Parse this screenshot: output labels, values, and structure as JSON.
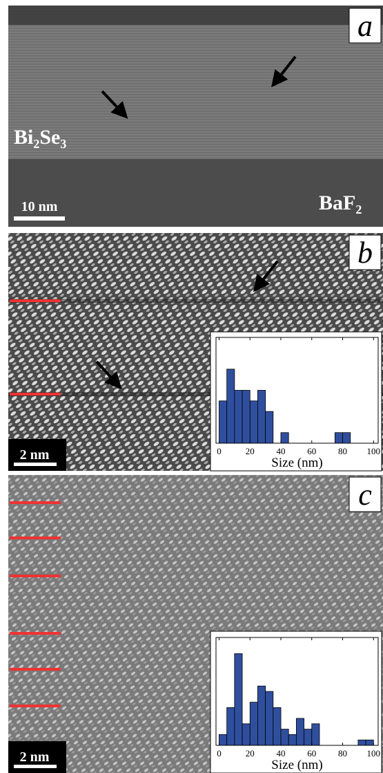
{
  "panels": [
    {
      "label": "a",
      "material_top": "Bi₂Se₃",
      "material_bottom": "BaF₂",
      "scale_bar": "10 nm"
    },
    {
      "label": "b",
      "scale_bar": "2 nm"
    },
    {
      "label": "c",
      "scale_bar": "2 nm"
    }
  ],
  "chart_data": [
    {
      "type": "histogram",
      "xlabel": "Size (nm)",
      "color": "#2f4f9e",
      "bins": [
        0,
        5,
        10,
        15,
        20,
        25,
        30,
        35,
        40,
        45,
        50,
        55,
        60,
        65,
        70,
        75,
        80,
        85,
        90,
        95,
        100
      ],
      "values": [
        4,
        7,
        5,
        5,
        4,
        5,
        3,
        0,
        1,
        0,
        0,
        0,
        0,
        0,
        0,
        1,
        1,
        0,
        0,
        0
      ],
      "xlim": [
        -2,
        103
      ],
      "ylim": [
        0,
        10
      ],
      "xticks": [
        0,
        20,
        40,
        60,
        80,
        100
      ]
    },
    {
      "type": "histogram",
      "xlabel": "Size (nm)",
      "color": "#2f4f9e",
      "bins": [
        0,
        5,
        10,
        15,
        20,
        25,
        30,
        35,
        40,
        45,
        50,
        55,
        60,
        65,
        70,
        75,
        80,
        85,
        90,
        95,
        100
      ],
      "values": [
        2,
        7,
        17,
        4,
        8,
        11,
        10,
        7,
        3,
        2,
        5,
        3,
        4,
        0,
        0,
        0,
        0,
        0,
        1,
        1
      ],
      "xlim": [
        -2,
        103
      ],
      "ylim": [
        0,
        20
      ],
      "xticks": [
        0,
        20,
        40,
        60,
        80,
        100
      ]
    }
  ]
}
